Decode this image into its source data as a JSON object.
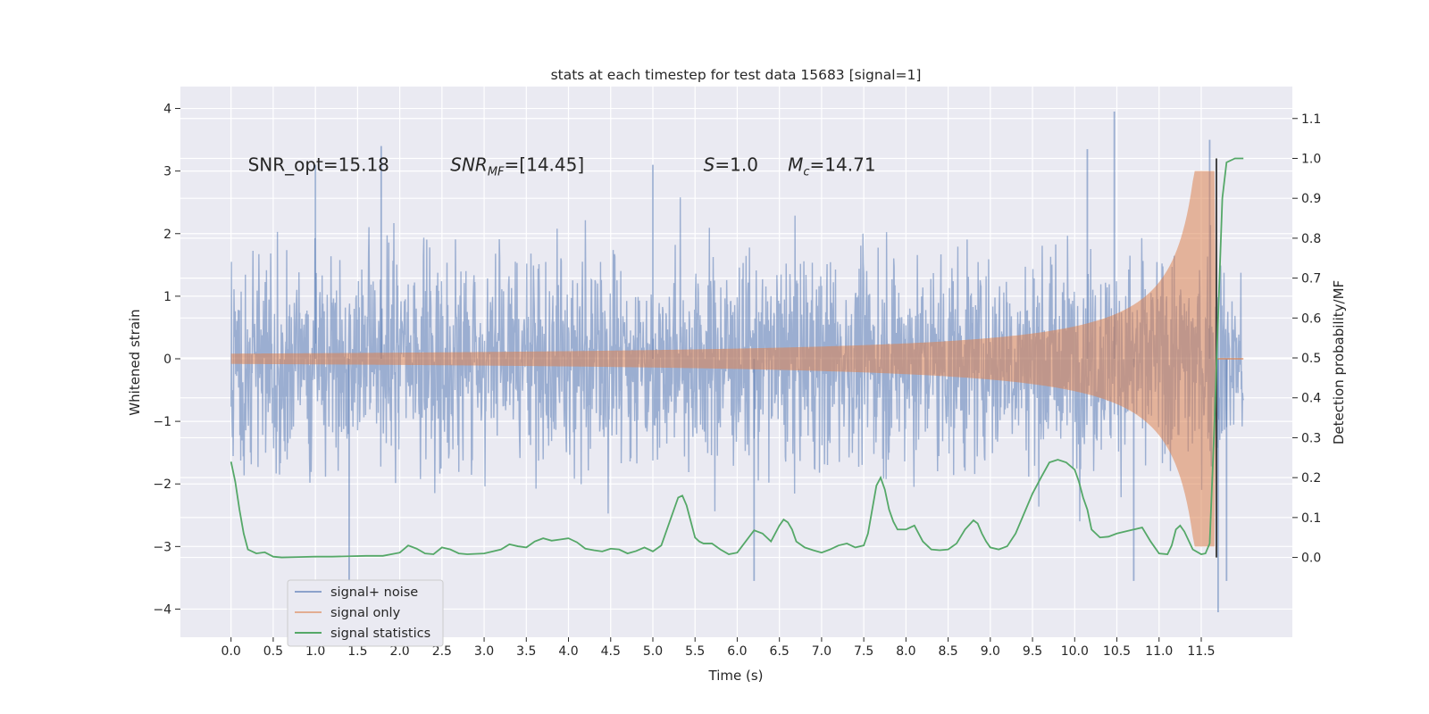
{
  "chart_data": {
    "type": "line",
    "title": "stats at each timestep for test data 15683 [signal=1]",
    "xlabel": "Time (s)",
    "ylabel_left": "Whitened strain",
    "ylabel_right": "Detection probability/MF",
    "xlim": [
      -0.6,
      12.58
    ],
    "ylim_left": [
      -4.45,
      4.35
    ],
    "ylim_right": [
      -0.2,
      1.18
    ],
    "x_ticks": [
      "0.0",
      "0.5",
      "1.0",
      "1.5",
      "2.0",
      "2.5",
      "3.0",
      "3.5",
      "4.0",
      "4.5",
      "5.0",
      "5.5",
      "6.0",
      "6.5",
      "7.0",
      "7.5",
      "8.0",
      "8.5",
      "9.0",
      "9.5",
      "10.0",
      "10.5",
      "11.0",
      "11.5"
    ],
    "y_ticks_left": [
      "4",
      "3",
      "2",
      "1",
      "0",
      "−1",
      "−2",
      "−3",
      "−4"
    ],
    "y_ticks_right": [
      "1.1",
      "1.0",
      "0.9",
      "0.8",
      "0.7",
      "0.6",
      "0.5",
      "0.4",
      "0.3",
      "0.2",
      "0.1",
      "0.0"
    ],
    "grid": true,
    "legend_position": "lower-left",
    "annotations": [
      {
        "text": "SNR_opt=15.18",
        "x": 0.2,
        "y": 3.1
      },
      {
        "text": "SNR",
        "sub": "MF",
        "rest": "=[14.45]",
        "math": true,
        "x": 2.6,
        "y": 3.1
      },
      {
        "text": "S",
        "rest": "=1.0",
        "math": true,
        "x": 5.6,
        "y": 3.1
      },
      {
        "text": "M",
        "sub": "c",
        "rest": "=14.71",
        "math": true,
        "x": 6.6,
        "y": 3.1
      }
    ],
    "series": [
      {
        "name": "signal+ noise",
        "axis": "left",
        "color": "#4c72b0",
        "alpha": 0.5,
        "description_type": "noise",
        "x_range": [
          0.0,
          12.0
        ],
        "peaks": [
          {
            "x": 1.0,
            "y": 3.1
          },
          {
            "x": 1.78,
            "y": 3.4
          },
          {
            "x": 5.0,
            "y": 3.1
          },
          {
            "x": 10.47,
            "y": 3.95
          },
          {
            "x": 10.15,
            "y": 3.35
          },
          {
            "x": 11.6,
            "y": 3.5
          },
          {
            "x": 1.4,
            "y": -3.6
          },
          {
            "x": 6.2,
            "y": -3.55
          },
          {
            "x": 11.7,
            "y": -4.05
          },
          {
            "x": 11.8,
            "y": -3.55
          },
          {
            "x": 10.7,
            "y": -3.55
          }
        ]
      },
      {
        "name": "signal only",
        "axis": "left",
        "color": "#dd8452",
        "alpha": 0.5,
        "chirp": {
          "t_start": 0.0,
          "t_merge": 11.68,
          "t_end": 12.0,
          "peak_amplitude": 3.0
        }
      },
      {
        "name": "signal statistics",
        "axis": "right",
        "color": "#55a868",
        "x": [
          0.0,
          0.05,
          0.1,
          0.15,
          0.2,
          0.3,
          0.4,
          0.5,
          0.6,
          0.8,
          1.0,
          1.2,
          1.4,
          1.6,
          1.8,
          2.0,
          2.1,
          2.2,
          2.3,
          2.4,
          2.5,
          2.6,
          2.7,
          2.8,
          3.0,
          3.2,
          3.3,
          3.4,
          3.5,
          3.6,
          3.7,
          3.8,
          3.9,
          4.0,
          4.1,
          4.2,
          4.3,
          4.4,
          4.5,
          4.6,
          4.7,
          4.8,
          4.9,
          5.0,
          5.1,
          5.2,
          5.3,
          5.35,
          5.4,
          5.45,
          5.5,
          5.55,
          5.6,
          5.7,
          5.8,
          5.9,
          6.0,
          6.1,
          6.2,
          6.3,
          6.4,
          6.5,
          6.55,
          6.6,
          6.65,
          6.7,
          6.8,
          6.9,
          7.0,
          7.1,
          7.2,
          7.3,
          7.4,
          7.5,
          7.55,
          7.6,
          7.65,
          7.7,
          7.75,
          7.8,
          7.85,
          7.9,
          8.0,
          8.1,
          8.2,
          8.3,
          8.4,
          8.5,
          8.6,
          8.7,
          8.8,
          8.85,
          8.9,
          8.95,
          9.0,
          9.1,
          9.2,
          9.3,
          9.4,
          9.5,
          9.6,
          9.7,
          9.8,
          9.9,
          10.0,
          10.05,
          10.1,
          10.15,
          10.2,
          10.3,
          10.4,
          10.5,
          10.6,
          10.7,
          10.8,
          10.9,
          11.0,
          11.1,
          11.15,
          11.2,
          11.25,
          11.3,
          11.4,
          11.5,
          11.55,
          11.6,
          11.65,
          11.7,
          11.75,
          11.8,
          11.9,
          12.0
        ],
        "values": [
          0.24,
          0.19,
          0.12,
          0.06,
          0.02,
          0.01,
          0.013,
          0.002,
          0.0,
          0.001,
          0.002,
          0.002,
          0.003,
          0.004,
          0.004,
          0.012,
          0.03,
          0.022,
          0.01,
          0.008,
          0.025,
          0.02,
          0.01,
          0.008,
          0.01,
          0.02,
          0.033,
          0.028,
          0.025,
          0.04,
          0.048,
          0.042,
          0.045,
          0.048,
          0.038,
          0.022,
          0.018,
          0.015,
          0.022,
          0.02,
          0.01,
          0.016,
          0.025,
          0.015,
          0.03,
          0.09,
          0.15,
          0.155,
          0.13,
          0.09,
          0.05,
          0.04,
          0.035,
          0.035,
          0.02,
          0.008,
          0.012,
          0.04,
          0.068,
          0.06,
          0.04,
          0.08,
          0.095,
          0.088,
          0.07,
          0.04,
          0.025,
          0.018,
          0.012,
          0.02,
          0.03,
          0.035,
          0.025,
          0.03,
          0.06,
          0.12,
          0.18,
          0.2,
          0.17,
          0.12,
          0.09,
          0.07,
          0.07,
          0.08,
          0.04,
          0.02,
          0.018,
          0.02,
          0.035,
          0.07,
          0.093,
          0.085,
          0.06,
          0.04,
          0.025,
          0.02,
          0.028,
          0.06,
          0.11,
          0.16,
          0.2,
          0.238,
          0.245,
          0.238,
          0.22,
          0.19,
          0.15,
          0.12,
          0.07,
          0.05,
          0.052,
          0.06,
          0.065,
          0.07,
          0.075,
          0.04,
          0.01,
          0.008,
          0.03,
          0.07,
          0.08,
          0.065,
          0.02,
          0.008,
          0.01,
          0.035,
          0.3,
          0.6,
          0.9,
          0.99,
          1.0,
          1.0
        ]
      }
    ],
    "vertical_marker": {
      "x": 11.68,
      "color": "#444444"
    },
    "legend": [
      {
        "label": "signal+ noise",
        "color": "#4c72b0"
      },
      {
        "label": "signal only",
        "color": "#dd8452"
      },
      {
        "label": "signal statistics",
        "color": "#55a868"
      }
    ]
  }
}
